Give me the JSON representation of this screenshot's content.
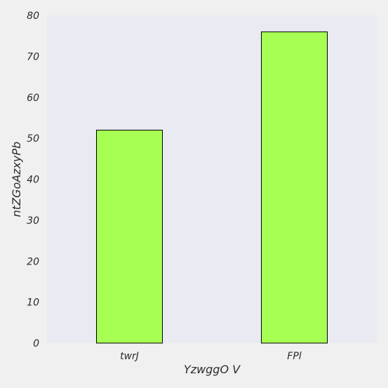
{
  "chart_data": {
    "type": "bar",
    "title": "",
    "xlabel": "YzwggO  V",
    "ylabel": "ntZGoAzxyPb",
    "categories": [
      "twrJ",
      "FPl"
    ],
    "values": [
      52,
      76
    ],
    "ylim": [
      0,
      80
    ],
    "yticks": [
      0,
      10,
      20,
      30,
      40,
      50,
      60,
      70,
      80
    ],
    "grid": false,
    "colors": {
      "background": "#f0f0f0",
      "plot_background": "#eaeaf2",
      "bar_fill": "#a6ff52",
      "bar_edge": "#000000"
    }
  }
}
